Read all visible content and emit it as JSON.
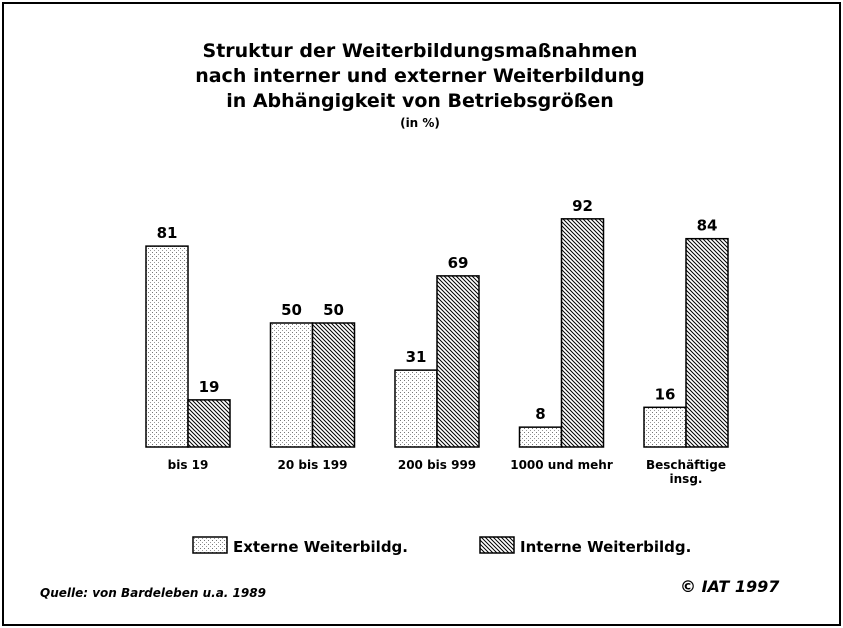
{
  "chart_data": {
    "type": "bar",
    "title": [
      "Struktur der Weiterbildungsmaßnahmen",
      "nach interner und externer Weiterbildung",
      "in Abhängigkeit von Betriebsgrößen"
    ],
    "subtitle": "(in %)",
    "categories": [
      "bis 19",
      "20 bis 199",
      "200 bis 999",
      "1000 und mehr",
      "Beschäftige\ninsg."
    ],
    "series": [
      {
        "name": "Externe Weiterbildg.",
        "color": "#000000",
        "pattern": "dots",
        "values": [
          81,
          50,
          31,
          8,
          16
        ]
      },
      {
        "name": "Interne Weiterbildg.",
        "color": "#000000",
        "pattern": "hatch",
        "values": [
          19,
          50,
          69,
          92,
          84
        ]
      }
    ],
    "ylim": [
      0,
      100
    ],
    "source": "Quelle: von Bardeleben u.a. 1989",
    "copyright": "© IAT 1997"
  }
}
